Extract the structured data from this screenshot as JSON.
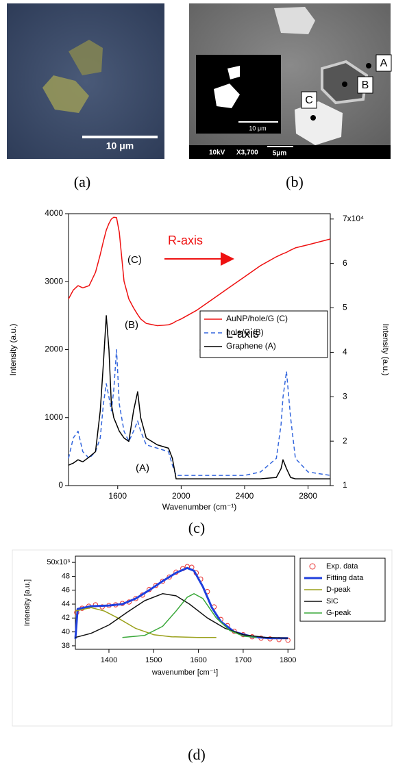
{
  "panels": {
    "a": {
      "label": "(a)",
      "scale_bar": "10 μm"
    },
    "b": {
      "label": "(b)",
      "points": [
        "A",
        "B",
        "C"
      ],
      "inset_scale": "10 μm",
      "voltage": "10kV",
      "magnification": "X3,700",
      "scale_bar": "5μm"
    },
    "c": {
      "label": "(c)"
    },
    "d": {
      "label": "(d)"
    }
  },
  "chart_data": [
    {
      "type": "line",
      "x_label": "Wavenumber (cm⁻¹)",
      "y_label": "Intensity (a.u.)",
      "y2_label": "Intensity (a.u.)",
      "xlim": [
        1290,
        2940
      ],
      "xticks": [
        1600,
        2000,
        2400,
        2800
      ],
      "ylim": [
        0,
        4000
      ],
      "yticks": [
        0,
        1000,
        2000,
        3000,
        4000
      ],
      "y2lim": [
        1,
        7.12
      ],
      "y2ticks": [
        1,
        2,
        3,
        4,
        5,
        6,
        {
          "value": 7,
          "label": "7x10⁴"
        }
      ],
      "x": [
        1290,
        1320,
        1350,
        1380,
        1420,
        1460,
        1490,
        1510,
        1528,
        1545,
        1560,
        1575,
        1593,
        1610,
        1640,
        1670,
        1700,
        1726,
        1745,
        1780,
        1850,
        1920,
        1945,
        1968,
        2000,
        2100,
        2200,
        2300,
        2400,
        2500,
        2600,
        2630,
        2642,
        2664,
        2690,
        2720,
        2800,
        2940
      ],
      "series": [
        {
          "name": "AuNP/hole/G (C)",
          "color": "#ee1111",
          "axis": "y2",
          "values": [
            5.2,
            5.4,
            5.5,
            5.45,
            5.5,
            5.8,
            6.2,
            6.5,
            6.75,
            6.9,
            7.0,
            7.04,
            7.03,
            6.7,
            5.6,
            5.2,
            5.0,
            4.85,
            4.75,
            4.65,
            4.6,
            4.62,
            4.65,
            4.7,
            4.75,
            4.95,
            5.2,
            5.45,
            5.7,
            5.95,
            6.15,
            6.2,
            6.22,
            6.25,
            6.3,
            6.35,
            6.42,
            6.55
          ]
        },
        {
          "name": "hole/G (B)",
          "color": "#3366dd",
          "dashed": true,
          "values": [
            400,
            700,
            800,
            500,
            400,
            500,
            700,
            1200,
            1500,
            1300,
            1100,
            1400,
            2000,
            1200,
            800,
            650,
            800,
            950,
            800,
            600,
            550,
            500,
            300,
            150,
            150,
            150,
            150,
            150,
            150,
            200,
            400,
            900,
            1300,
            1680,
            1000,
            400,
            200,
            150
          ]
        },
        {
          "name": "Graphene (A)",
          "color": "#000000",
          "values": [
            300,
            330,
            380,
            350,
            420,
            500,
            1100,
            1800,
            2500,
            2000,
            1200,
            1000,
            900,
            800,
            700,
            650,
            1100,
            1380,
            1000,
            700,
            600,
            550,
            400,
            100,
            100,
            100,
            100,
            100,
            100,
            100,
            120,
            250,
            380,
            250,
            120,
            100,
            100,
            100
          ]
        }
      ],
      "annotations": [
        "(C)",
        "(B)",
        "(A)",
        "R-axis",
        "L-axis"
      ]
    },
    {
      "type": "line",
      "x_label": "wavenumber [cm⁻¹]",
      "y_label": "Intensity [a.u.]",
      "xlim": [
        1325,
        1815
      ],
      "xticks": [
        1400,
        1500,
        1600,
        1700,
        1800
      ],
      "ylim": [
        37.5,
        50.9
      ],
      "yticks": [
        38,
        40,
        42,
        44,
        46,
        48,
        {
          "value": 50,
          "label": "50x10³"
        }
      ],
      "series": [
        {
          "name": "Exp. data",
          "color": "#e83030",
          "mode": "markers",
          "x": [
            1328,
            1340,
            1355,
            1370,
            1385,
            1400,
            1415,
            1430,
            1445,
            1460,
            1475,
            1490,
            1505,
            1520,
            1535,
            1550,
            1565,
            1575,
            1585,
            1595,
            1605,
            1620,
            1635,
            1650,
            1665,
            1680,
            1700,
            1720,
            1740,
            1760,
            1780,
            1800
          ],
          "values": [
            42.8,
            43.4,
            43.7,
            43.9,
            43.6,
            43.8,
            43.9,
            44.1,
            44.3,
            44.8,
            45.3,
            46.1,
            46.7,
            47.3,
            47.9,
            48.6,
            49.1,
            49.4,
            49.3,
            48.5,
            47.6,
            45.8,
            43.6,
            41.8,
            40.9,
            40.1,
            39.6,
            39.3,
            39.1,
            39.0,
            38.9,
            38.8
          ]
        },
        {
          "name": "Fitting data",
          "color": "#1f3fdd",
          "line_width": 3,
          "x": [
            1325,
            1330,
            1360,
            1400,
            1430,
            1460,
            1490,
            1520,
            1550,
            1575,
            1590,
            1610,
            1630,
            1650,
            1680,
            1720,
            1760,
            1800
          ],
          "values": [
            39,
            43.3,
            43.7,
            43.8,
            44.0,
            44.8,
            46,
            47.3,
            48.5,
            49.2,
            48.8,
            46.5,
            43.5,
            41.5,
            40,
            39.3,
            39.1,
            39.1
          ]
        },
        {
          "name": "D-peak",
          "color": "#9aa01a",
          "x": [
            1325,
            1360,
            1390,
            1420,
            1460,
            1500,
            1540,
            1600,
            1640
          ],
          "values": [
            43,
            43.5,
            43,
            42,
            40.5,
            39.6,
            39.3,
            39.2,
            39.2
          ]
        },
        {
          "name": "SiC",
          "color": "#111111",
          "x": [
            1325,
            1360,
            1400,
            1440,
            1480,
            1520,
            1550,
            1580,
            1620,
            1660,
            1700,
            1750,
            1800
          ],
          "values": [
            39.2,
            39.8,
            41,
            42.8,
            44.5,
            45.5,
            45.2,
            44,
            42,
            40.5,
            39.6,
            39.2,
            39.1
          ]
        },
        {
          "name": "G-peak",
          "color": "#3aa83a",
          "x": [
            1430,
            1480,
            1520,
            1550,
            1575,
            1590,
            1610,
            1640,
            1670,
            1700,
            1730
          ],
          "values": [
            39.2,
            39.5,
            40.8,
            43,
            45,
            45.5,
            44.8,
            42,
            40.2,
            39.4,
            39.2
          ]
        }
      ]
    }
  ]
}
